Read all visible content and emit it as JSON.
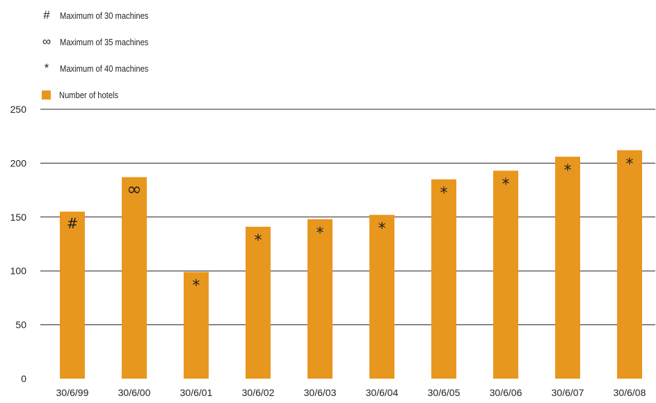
{
  "legend": {
    "items": [
      {
        "symbol": "#",
        "label": "Maximum of 30 machines"
      },
      {
        "symbol": "∞",
        "label": "Maximum of 35 machines"
      },
      {
        "symbol": "*",
        "label": "Maximum of 40 machines"
      },
      {
        "symbol": "",
        "label": "Number of hotels",
        "swatch": true
      }
    ]
  },
  "colors": {
    "bar": "#e8971e",
    "grid": "#231f20",
    "text": "#231f20"
  },
  "chart_data": {
    "type": "bar",
    "title": "",
    "xlabel": "",
    "ylabel": "",
    "categories": [
      "30/6/99",
      "30/6/00",
      "30/6/01",
      "30/6/02",
      "30/6/03",
      "30/6/04",
      "30/6/05",
      "30/6/06",
      "30/6/07",
      "30/6/08"
    ],
    "series": [
      {
        "name": "Number of hotels",
        "values": [
          155,
          187,
          99,
          141,
          148,
          152,
          185,
          193,
          206,
          212
        ]
      }
    ],
    "markers": [
      "#",
      "∞",
      "*",
      "*",
      "*",
      "*",
      "*",
      "*",
      "*",
      "*"
    ],
    "ylim": [
      0,
      250
    ],
    "yticks": [
      0,
      50,
      100,
      150,
      200,
      250
    ],
    "grid": true,
    "legend_position": "top-left"
  }
}
